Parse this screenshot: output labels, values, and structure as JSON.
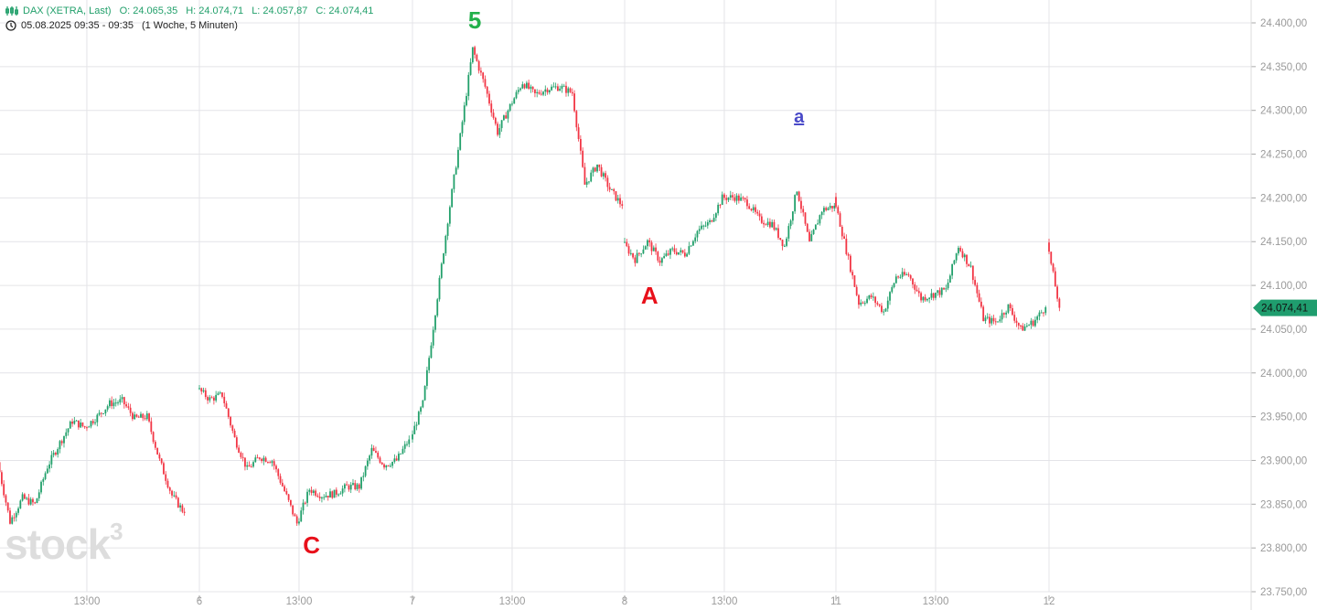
{
  "header": {
    "symbol": "DAX (XETRA, Last)",
    "open": "O: 24.065,35",
    "high": "H: 24.074,71",
    "low": "L: 24.057,87",
    "close": "C: 24.074,41",
    "range": "05.08.2025 09:35 - 09:35",
    "period": "(1 Woche, 5 Minuten)",
    "icon_series": "candles-icon",
    "icon_time": "clock-icon"
  },
  "watermark": "stock3",
  "colors": {
    "up": "#22a06b",
    "down": "#f23645",
    "grid": "#e4e4e8",
    "axis_text": "#9a9a9a",
    "wave_green": "#22b04b",
    "wave_red": "#e8101a",
    "wave_blue": "#4a4ac8"
  },
  "wave_labels": [
    {
      "text": "5",
      "date": "7",
      "time": "11:30",
      "price": 24400,
      "color": "wave_green"
    },
    {
      "text": "C",
      "date": "6",
      "time": "13:30",
      "price": 23800,
      "color": "wave_red"
    },
    {
      "text": "A",
      "date": "8",
      "time": "10:00",
      "price": 24085,
      "color": "wave_red"
    },
    {
      "text": "a",
      "date": "8",
      "time": "16:00",
      "price": 24285,
      "color": "wave_blue",
      "underline": true
    }
  ],
  "chart_data": {
    "type": "candlestick",
    "interval": "5 Minuten",
    "ylim": [
      23750,
      24400
    ],
    "grid": true,
    "y_ticks": [
      "24.400,00",
      "24.350,00",
      "24.300,00",
      "24.250,00",
      "24.200,00",
      "24.150,00",
      "24.100,00",
      "24.050,00",
      "24.000,00",
      "23.950,00",
      "23.900,00",
      "23.850,00",
      "23.800,00",
      "23.750,00"
    ],
    "x_ticks": [
      "13:00",
      "6",
      "13:00",
      "7",
      "13:00",
      "8",
      "13:00",
      "11",
      "13:00",
      "12"
    ],
    "last_price": "24.074,41",
    "last_price_value": 24074.41,
    "days": [
      {
        "date": "5",
        "start": "09:30",
        "closes": [
          23898,
          23830,
          23857,
          23850,
          23893,
          23920,
          23945,
          23938,
          23950,
          23965,
          23968,
          23948,
          23950,
          23900,
          23860,
          23840
        ]
      },
      {
        "date": "6",
        "start": "09:00",
        "closes": [
          23982,
          23970,
          23975,
          23925,
          23890,
          23904,
          23900,
          23865,
          23828,
          23867,
          23860,
          23862,
          23870,
          23870,
          23912,
          23895,
          23900,
          23924
        ]
      },
      {
        "date": "7",
        "start": "09:00",
        "closes": [
          23924,
          23965,
          24070,
          24175,
          24270,
          24370,
          24327,
          24275,
          24305,
          24332,
          24318,
          24325,
          24327,
          24320,
          24215,
          24238,
          24210,
          24191
        ]
      },
      {
        "date": "8",
        "start": "09:00",
        "closes": [
          24149,
          24130,
          24150,
          24128,
          24140,
          24136,
          24162,
          24172,
          24200,
          24201,
          24195,
          24175,
          24170,
          24145,
          24210,
          24148,
          24186,
          24191
        ]
      },
      {
        "date": "11",
        "start": "09:00",
        "closes": [
          24201,
          24140,
          24080,
          24087,
          24070,
          24110,
          24112,
          24085,
          24090,
          24095,
          24145,
          24120,
          24062,
          24058,
          24076,
          24050,
          24058,
          24075
        ]
      },
      {
        "date": "12",
        "start": "09:00",
        "closes": [
          24149,
          24074.41
        ]
      }
    ]
  }
}
